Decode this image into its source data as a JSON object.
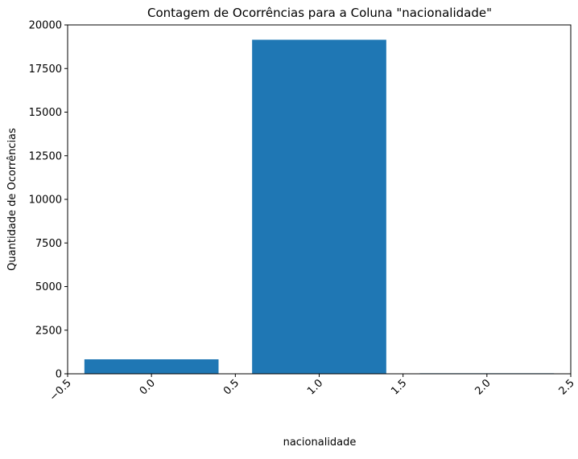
{
  "chart_data": {
    "type": "bar",
    "title": "Contagem de Ocorrências para a Coluna \"nacionalidade\"",
    "xlabel": "nacionalidade",
    "ylabel": "Quantidade de Ocorrências",
    "x": [
      0.0,
      1.0,
      2.0
    ],
    "values": [
      830,
      19150,
      30
    ],
    "bar_width": 0.8,
    "xlim": [
      -0.5,
      2.5
    ],
    "ylim": [
      0,
      20000
    ],
    "xticks": [
      -0.5,
      0.0,
      0.5,
      1.0,
      1.5,
      2.0,
      2.5
    ],
    "xtick_labels": [
      "−0.5",
      "0.0",
      "0.5",
      "1.0",
      "1.5",
      "2.0",
      "2.5"
    ],
    "yticks": [
      0,
      2500,
      5000,
      7500,
      10000,
      12500,
      15000,
      17500,
      20000
    ],
    "ytick_labels": [
      "0",
      "2500",
      "5000",
      "7500",
      "10000",
      "12500",
      "15000",
      "17500",
      "20000"
    ],
    "xtick_rotation_deg": 45,
    "grid": false,
    "legend": "none",
    "colors": {
      "bar": "#1f77b4",
      "axes": "#000000"
    }
  }
}
